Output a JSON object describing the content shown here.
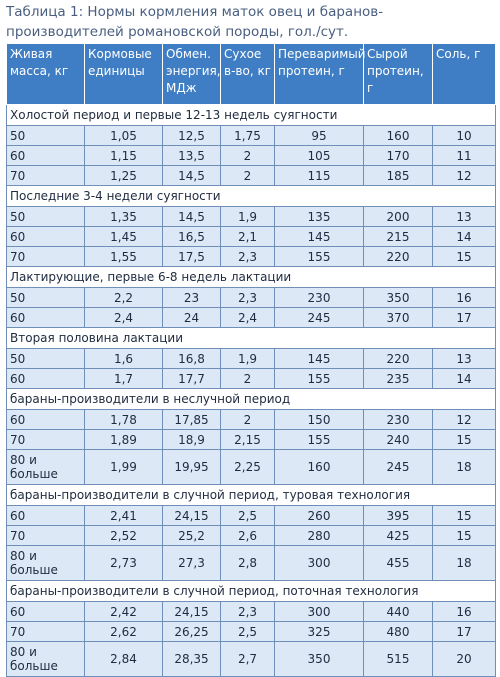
{
  "caption": "Таблица 1: Нормы кормления маток овец и баранов-производителей романовской породы, гол./сут.",
  "headers": [
    "Живая масса, кг",
    "Кормовые единицы",
    "Обмен. энергия, МДж",
    "Сухое в-во, кг",
    "Переваримый протеин, г",
    "Сырой протеин, г",
    "Соль, г"
  ],
  "sections": [
    {
      "title": "Холостой период и первые 12-13 недель суягности",
      "rows": [
        [
          "50",
          "1,05",
          "12,5",
          "1,75",
          "95",
          "160",
          "10"
        ],
        [
          "60",
          "1,15",
          "13,5",
          "2",
          "105",
          "170",
          "11"
        ],
        [
          "70",
          "1,25",
          "14,5",
          "2",
          "115",
          "185",
          "12"
        ]
      ]
    },
    {
      "title": "Последние 3-4 недели суягности",
      "rows": [
        [
          "50",
          "1,35",
          "14,5",
          "1,9",
          "135",
          "200",
          "13"
        ],
        [
          "60",
          "1,45",
          "16,5",
          "2,1",
          "145",
          "215",
          "14"
        ],
        [
          "70",
          "1,55",
          "17,5",
          "2,3",
          "155",
          "220",
          "15"
        ]
      ]
    },
    {
      "title": "Лактирующие, первые 6-8 недель лактации",
      "rows": [
        [
          "50",
          "2,2",
          "23",
          "2,3",
          "230",
          "350",
          "16"
        ],
        [
          "60",
          "2,4",
          "24",
          "2,4",
          "245",
          "370",
          "17"
        ]
      ]
    },
    {
      "title": "Вторая половина лактации",
      "rows": [
        [
          "50",
          "1,6",
          "16,8",
          "1,9",
          "145",
          "220",
          "13"
        ],
        [
          "60",
          "1,7",
          "17,7",
          "2",
          "155",
          "235",
          "14"
        ]
      ]
    },
    {
      "title": "бараны-производители в неслучной период",
      "rows": [
        [
          "60",
          "1,78",
          "17,85",
          "2",
          "150",
          "230",
          "12"
        ],
        [
          "70",
          "1,89",
          "18,9",
          "2,15",
          "155",
          "240",
          "15"
        ],
        [
          "80 и больше",
          "1,99",
          "19,95",
          "2,25",
          "160",
          "245",
          "18"
        ]
      ]
    },
    {
      "title": "бараны-производители в случной период, туровая технология",
      "rows": [
        [
          "60",
          "2,41",
          "24,15",
          "2,5",
          "260",
          "395",
          "15"
        ],
        [
          "70",
          "2,52",
          "25,2",
          "2,6",
          "280",
          "425",
          "15"
        ],
        [
          "80 и больше",
          "2,73",
          "27,3",
          "2,8",
          "300",
          "455",
          "18"
        ]
      ]
    },
    {
      "title": "бараны-производители в случной период, поточная технология",
      "rows": [
        [
          "60",
          "2,42",
          "24,15",
          "2,3",
          "300",
          "440",
          "16"
        ],
        [
          "70",
          "2,62",
          "26,25",
          "2,5",
          "325",
          "480",
          "17"
        ],
        [
          "80 и больше",
          "2,84",
          "28,35",
          "2,7",
          "350",
          "515",
          "20"
        ]
      ]
    }
  ]
}
